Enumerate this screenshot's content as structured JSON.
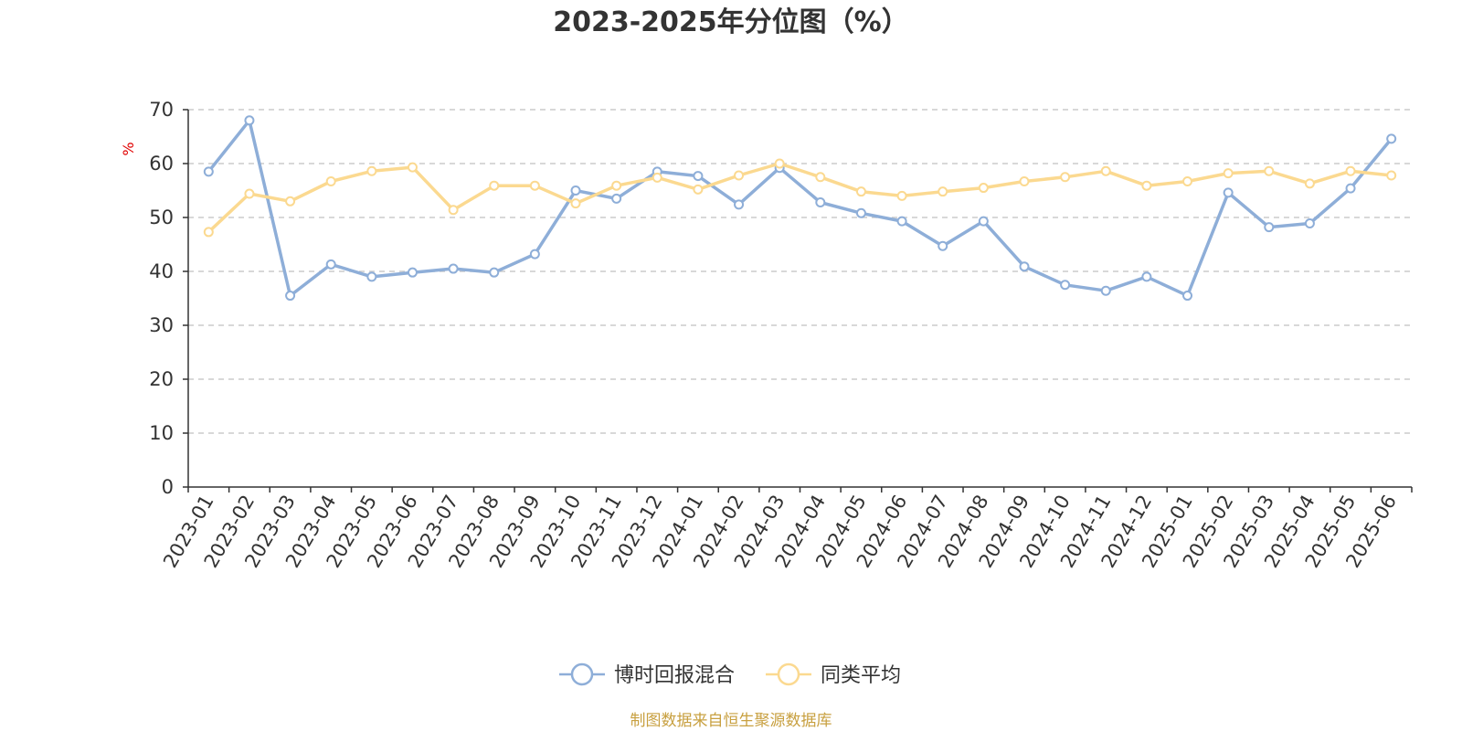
{
  "chart_data": {
    "type": "line",
    "title": "2023-2025年分位图（%）",
    "ylabel": "%",
    "xlabel": "",
    "ylim": [
      0,
      70
    ],
    "yticks": [
      0,
      10,
      20,
      30,
      40,
      50,
      60,
      70
    ],
    "grid": true,
    "legend_position": "bottom",
    "categories": [
      "2023-01",
      "2023-02",
      "2023-03",
      "2023-04",
      "2023-05",
      "2023-06",
      "2023-07",
      "2023-08",
      "2023-09",
      "2023-10",
      "2023-11",
      "2023-12",
      "2024-01",
      "2024-02",
      "2024-03",
      "2024-04",
      "2024-05",
      "2024-06",
      "2024-07",
      "2024-08",
      "2024-09",
      "2024-10",
      "2024-11",
      "2024-12",
      "2025-01",
      "2025-02",
      "2025-03",
      "2025-04",
      "2025-05",
      "2025-06"
    ],
    "series": [
      {
        "name": "博时回报混合",
        "color": "#8eaed8",
        "values": [
          58.5,
          68.0,
          35.5,
          41.3,
          39.0,
          39.8,
          40.5,
          39.8,
          43.2,
          55.0,
          53.5,
          58.5,
          57.7,
          52.4,
          59.2,
          52.8,
          50.8,
          49.3,
          44.7,
          49.3,
          40.9,
          37.5,
          36.4,
          39.0,
          35.5,
          54.6,
          48.2,
          48.9,
          55.4,
          64.6
        ]
      },
      {
        "name": "同类平均",
        "color": "#fbd990",
        "values": [
          47.3,
          54.4,
          53.0,
          56.7,
          58.6,
          59.3,
          51.4,
          55.9,
          55.9,
          52.6,
          55.9,
          57.4,
          55.2,
          57.8,
          60.0,
          57.5,
          54.8,
          54.0,
          54.8,
          55.5,
          56.7,
          57.5,
          58.6,
          55.9,
          56.7,
          58.2,
          58.6,
          56.3,
          58.6,
          57.8
        ]
      }
    ]
  },
  "source_text": "制图数据来自恒生聚源数据库"
}
